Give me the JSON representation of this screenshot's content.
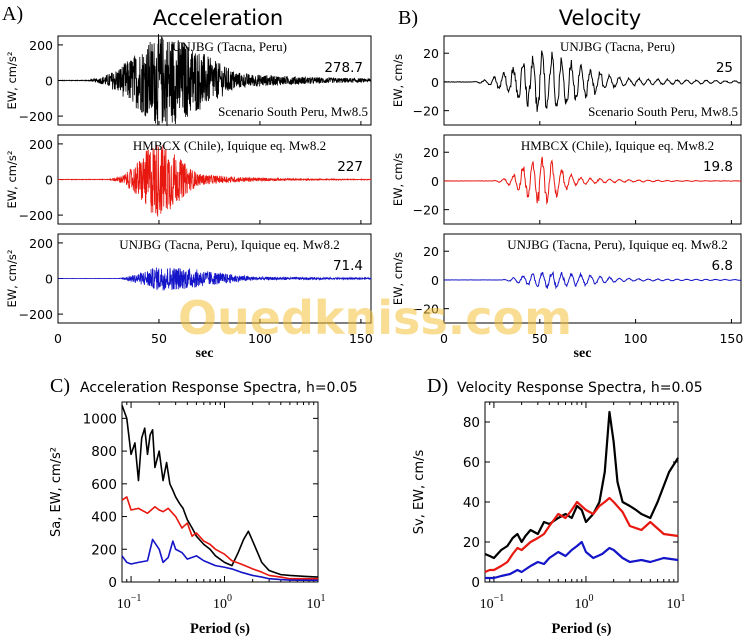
{
  "panels": {
    "A": {
      "letter": "A)",
      "title": "Acceleration"
    },
    "B": {
      "letter": "B)",
      "title": "Velocity"
    },
    "C": {
      "letter": "C)",
      "title": "Acceleration Response Spectra, h=0.05"
    },
    "D": {
      "letter": "D)",
      "title": "Velocity Response Spectra, h=0.05"
    }
  },
  "watermark": "Ouedkniss.com",
  "colors": {
    "black": "#000000",
    "red": "#e8170f",
    "blue": "#1414c8"
  },
  "chart_data": [
    {
      "id": "A",
      "type": "line",
      "xlabel": "sec",
      "xlim": [
        0,
        155
      ],
      "xticks": [
        "0",
        "50",
        "100",
        "150"
      ],
      "traces": [
        {
          "ylabel": "EW, cm/s²",
          "ylim": [
            -250,
            250
          ],
          "yticks": [
            "200",
            "0",
            "−200"
          ],
          "yticks_values": [
            200,
            0,
            -200
          ],
          "color": "black",
          "peak": 278.7,
          "peak_label": "278.7",
          "label_top": "UNJBG (Tacna, Peru)",
          "label_bottom": "Scenario South Peru, Mw8.5"
        },
        {
          "ylabel": "EW, cm/s²",
          "ylim": [
            -250,
            250
          ],
          "yticks": [
            "200",
            "0",
            "−200"
          ],
          "yticks_values": [
            200,
            0,
            -200
          ],
          "color": "red",
          "peak": 227,
          "peak_label": "227",
          "label_top": "HMBCX (Chile), Iquique eq. Mw8.2"
        },
        {
          "ylabel": "EW, cm/s²",
          "ylim": [
            -250,
            250
          ],
          "yticks": [
            "200",
            "0",
            "−200"
          ],
          "yticks_values": [
            200,
            0,
            -200
          ],
          "color": "blue",
          "peak": 71.4,
          "peak_label": "71.4",
          "label_top": "UNJBG (Tacna, Peru), Iquique eq. Mw8.2"
        }
      ]
    },
    {
      "id": "B",
      "type": "line",
      "xlabel": "sec",
      "xlim": [
        0,
        155
      ],
      "xticks": [
        "0",
        "50",
        "100",
        "150"
      ],
      "traces": [
        {
          "ylabel": "EW, cm/s",
          "ylim": [
            -30,
            32
          ],
          "yticks": [
            "20",
            "0",
            "−20"
          ],
          "yticks_values": [
            20,
            0,
            -20
          ],
          "color": "black",
          "peak": 25,
          "peak_label": "25",
          "label_top": "UNJBG (Tacna, Peru)",
          "label_bottom": "Scenario South Peru, Mw8.5"
        },
        {
          "ylabel": "EW, cm/s",
          "ylim": [
            -30,
            32
          ],
          "yticks": [
            "20",
            "0",
            "−20"
          ],
          "yticks_values": [
            20,
            0,
            -20
          ],
          "color": "red",
          "peak": 19.8,
          "peak_label": "19.8",
          "label_top": "HMBCX (Chile), Iquique eq. Mw8.2"
        },
        {
          "ylabel": "EW, cm/s",
          "ylim": [
            -30,
            32
          ],
          "yticks": [
            "20",
            "0",
            "−20"
          ],
          "yticks_values": [
            20,
            0,
            -20
          ],
          "color": "blue",
          "peak": 6.8,
          "peak_label": "6.8",
          "label_top": "UNJBG (Tacna, Peru), Iquique eq. Mw8.2"
        }
      ]
    },
    {
      "id": "C",
      "type": "line",
      "xscale": "log",
      "xlabel": "Period (s)",
      "ylabel": "Sa, EW, cm/s²",
      "xlim": [
        0.08,
        10
      ],
      "ylim": [
        0,
        1100
      ],
      "yticks": [
        0,
        200,
        400,
        600,
        800,
        1000
      ],
      "xticks": [
        "10",
        "10",
        "10",
        "10"
      ],
      "xticks_exp": [
        "−1",
        "0",
        "1"
      ],
      "xticks_values": [
        0.1,
        1,
        10
      ],
      "series": [
        {
          "color": "black",
          "x": [
            0.08,
            0.09,
            0.1,
            0.11,
            0.12,
            0.13,
            0.14,
            0.15,
            0.16,
            0.17,
            0.18,
            0.2,
            0.22,
            0.24,
            0.26,
            0.28,
            0.3,
            0.33,
            0.36,
            0.4,
            0.45,
            0.5,
            0.6,
            0.7,
            0.8,
            1.0,
            1.2,
            1.4,
            1.6,
            1.8,
            2.0,
            2.5,
            3.0,
            4.0,
            5.0,
            7.0,
            10.0
          ],
          "y": [
            1080,
            1000,
            780,
            850,
            620,
            880,
            940,
            780,
            900,
            930,
            700,
            800,
            620,
            730,
            600,
            560,
            520,
            480,
            450,
            380,
            330,
            280,
            230,
            200,
            160,
            120,
            100,
            180,
            260,
            310,
            250,
            120,
            70,
            45,
            40,
            35,
            30
          ]
        },
        {
          "color": "red",
          "x": [
            0.08,
            0.09,
            0.1,
            0.12,
            0.15,
            0.18,
            0.2,
            0.22,
            0.25,
            0.3,
            0.35,
            0.4,
            0.45,
            0.5,
            0.6,
            0.7,
            0.8,
            1.0,
            1.2,
            1.5,
            2.0,
            2.5,
            3.0,
            4.0,
            5.0,
            7.0,
            10.0
          ],
          "y": [
            500,
            520,
            440,
            450,
            420,
            460,
            440,
            430,
            450,
            400,
            330,
            360,
            280,
            300,
            250,
            230,
            200,
            170,
            130,
            110,
            80,
            60,
            40,
            30,
            20,
            20,
            20
          ]
        },
        {
          "color": "blue",
          "x": [
            0.08,
            0.09,
            0.1,
            0.12,
            0.15,
            0.17,
            0.2,
            0.22,
            0.25,
            0.28,
            0.3,
            0.35,
            0.4,
            0.5,
            0.6,
            0.8,
            1.0,
            1.2,
            1.5,
            2.0,
            2.5,
            3.0,
            4.0,
            5.0,
            10.0
          ],
          "y": [
            160,
            120,
            110,
            120,
            130,
            260,
            200,
            120,
            150,
            250,
            200,
            180,
            140,
            160,
            130,
            100,
            90,
            80,
            60,
            40,
            30,
            20,
            15,
            12,
            10
          ]
        }
      ]
    },
    {
      "id": "D",
      "type": "line",
      "xscale": "log",
      "xlabel": "Period (s)",
      "ylabel": "Sv, EW, cm/s",
      "xlim": [
        0.08,
        10
      ],
      "ylim": [
        0,
        90
      ],
      "yticks": [
        0,
        20,
        40,
        60,
        80
      ],
      "xticks": [
        "10",
        "10",
        "10",
        "10"
      ],
      "xticks_exp": [
        "−1",
        "0",
        "1"
      ],
      "xticks_values": [
        0.1,
        1,
        10
      ],
      "series": [
        {
          "color": "black",
          "x": [
            0.08,
            0.09,
            0.1,
            0.12,
            0.14,
            0.16,
            0.18,
            0.2,
            0.22,
            0.25,
            0.3,
            0.35,
            0.4,
            0.5,
            0.6,
            0.7,
            0.8,
            0.9,
            1.0,
            1.2,
            1.4,
            1.6,
            1.8,
            2.0,
            2.2,
            2.5,
            3.0,
            3.5,
            4.0,
            5.0,
            6.0,
            8.0,
            10.0
          ],
          "y": [
            14,
            13,
            12,
            16,
            18,
            22,
            24,
            20,
            23,
            26,
            24,
            30,
            29,
            32,
            34,
            32,
            38,
            36,
            30,
            34,
            40,
            55,
            85,
            70,
            50,
            40,
            38,
            36,
            34,
            32,
            40,
            55,
            62
          ]
        },
        {
          "color": "red",
          "x": [
            0.08,
            0.09,
            0.1,
            0.12,
            0.14,
            0.16,
            0.18,
            0.2,
            0.25,
            0.3,
            0.35,
            0.4,
            0.5,
            0.6,
            0.7,
            0.8,
            1.0,
            1.2,
            1.4,
            1.6,
            1.8,
            2.0,
            2.5,
            3.0,
            4.0,
            5.0,
            7.0,
            10.0
          ],
          "y": [
            5,
            6,
            6,
            8,
            10,
            14,
            17,
            16,
            20,
            22,
            24,
            28,
            34,
            32,
            36,
            40,
            36,
            34,
            38,
            40,
            42,
            40,
            35,
            28,
            26,
            30,
            24,
            23
          ]
        },
        {
          "color": "blue",
          "x": [
            0.08,
            0.1,
            0.12,
            0.15,
            0.18,
            0.2,
            0.25,
            0.3,
            0.35,
            0.4,
            0.5,
            0.6,
            0.7,
            0.8,
            0.9,
            1.0,
            1.2,
            1.5,
            1.8,
            2.0,
            2.5,
            3.0,
            4.0,
            5.0,
            7.0,
            10.0
          ],
          "y": [
            2,
            2,
            3,
            4,
            6,
            5,
            8,
            10,
            9,
            12,
            15,
            13,
            16,
            18,
            20,
            15,
            12,
            14,
            17,
            16,
            12,
            10,
            11,
            10,
            12,
            11
          ]
        }
      ]
    }
  ]
}
